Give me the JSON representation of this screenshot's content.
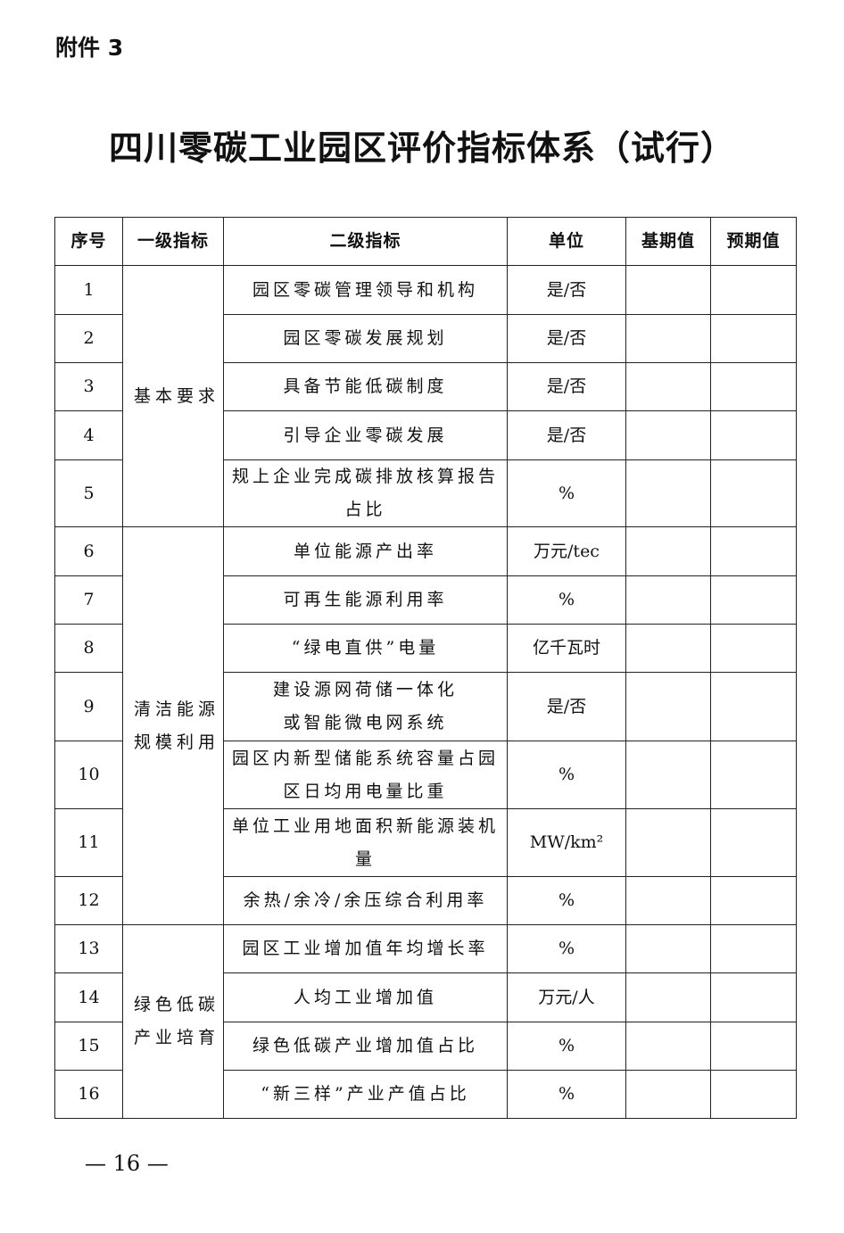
{
  "attachment_label": "附件 3",
  "title": "四川零碳工业园区评价指标体系（试行）",
  "table": {
    "headers": [
      "序号",
      "一级指标",
      "二级指标",
      "单位",
      "基期值",
      "预期值"
    ],
    "groups": [
      {
        "label": "基本要求",
        "rows": [
          {
            "no": "1",
            "indicator": "园区零碳管理领导和机构",
            "unit": "是/否",
            "base": "",
            "expected": ""
          },
          {
            "no": "2",
            "indicator": "园区零碳发展规划",
            "unit": "是/否",
            "base": "",
            "expected": ""
          },
          {
            "no": "3",
            "indicator": "具备节能低碳制度",
            "unit": "是/否",
            "base": "",
            "expected": ""
          },
          {
            "no": "4",
            "indicator": "引导企业零碳发展",
            "unit": "是/否",
            "base": "",
            "expected": ""
          },
          {
            "no": "5",
            "indicator": "规上企业完成碳排放核算报告\n占比",
            "unit": "%",
            "base": "",
            "expected": ""
          }
        ]
      },
      {
        "label": "清洁能源\n规模利用",
        "rows": [
          {
            "no": "6",
            "indicator": "单位能源产出率",
            "unit": "万元/tec",
            "base": "",
            "expected": ""
          },
          {
            "no": "7",
            "indicator": "可再生能源利用率",
            "unit": "%",
            "base": "",
            "expected": ""
          },
          {
            "no": "8",
            "indicator": "“绿电直供”电量",
            "unit": "亿千瓦时",
            "base": "",
            "expected": ""
          },
          {
            "no": "9",
            "indicator": "建设源网荷储一体化\n或智能微电网系统",
            "unit": "是/否",
            "base": "",
            "expected": ""
          },
          {
            "no": "10",
            "indicator": "园区内新型储能系统容量占园\n区日均用电量比重",
            "unit": "%",
            "base": "",
            "expected": ""
          },
          {
            "no": "11",
            "indicator": "单位工业用地面积新能源装机\n量",
            "unit": "MW/km²",
            "base": "",
            "expected": ""
          },
          {
            "no": "12",
            "indicator": "余热/余冷/余压综合利用率",
            "unit": "%",
            "base": "",
            "expected": ""
          }
        ]
      },
      {
        "label": "绿色低碳\n产业培育",
        "rows": [
          {
            "no": "13",
            "indicator": "园区工业增加值年均增长率",
            "unit": "%",
            "base": "",
            "expected": ""
          },
          {
            "no": "14",
            "indicator": "人均工业增加值",
            "unit": "万元/人",
            "base": "",
            "expected": ""
          },
          {
            "no": "15",
            "indicator": "绿色低碳产业增加值占比",
            "unit": "%",
            "base": "",
            "expected": ""
          },
          {
            "no": "16",
            "indicator": "“新三样”产业产值占比",
            "unit": "%",
            "base": "",
            "expected": ""
          }
        ]
      }
    ]
  },
  "page_number": "— 16 —"
}
